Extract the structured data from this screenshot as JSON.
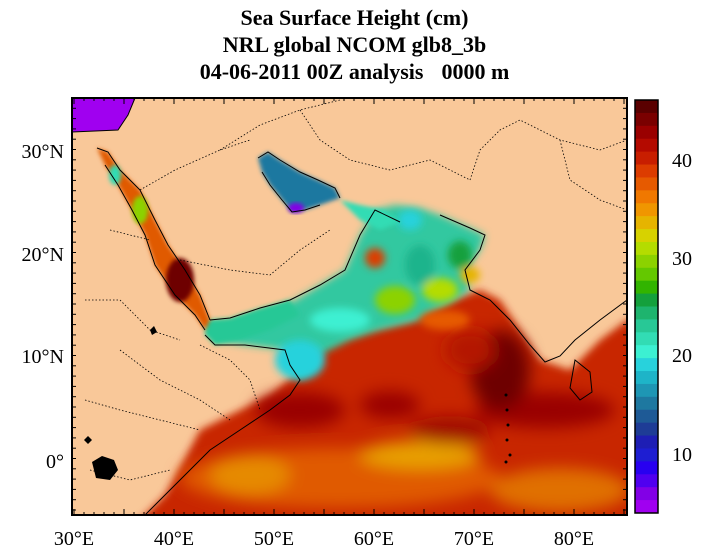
{
  "title": {
    "line1": "Sea Surface Height (cm)",
    "line2": "NRL global NCOM glb8_3b",
    "line3_date": "04-06-2011 00Z analysis",
    "line3_depth": "0000 m"
  },
  "map": {
    "lon_range": [
      30,
      86
    ],
    "lat_range": [
      -5,
      35
    ],
    "x_ticks": [
      "30°E",
      "40°E",
      "50°E",
      "60°E",
      "70°E",
      "80°E"
    ],
    "y_ticks": [
      "30°N",
      "20°N",
      "10°N",
      "0°"
    ],
    "land_color": "#f9c899"
  },
  "colorbar": {
    "range": [
      5,
      45
    ],
    "labels": [
      "40",
      "30",
      "20",
      "10"
    ],
    "colors": [
      "#5a0000",
      "#7a0000",
      "#9a0000",
      "#b40a00",
      "#c81e00",
      "#dc3c00",
      "#e65a00",
      "#f07800",
      "#f09600",
      "#e6b400",
      "#d7d200",
      "#b4dc00",
      "#8cd200",
      "#64c800",
      "#32b400",
      "#14a03c",
      "#1eb46e",
      "#28c896",
      "#32dcb4",
      "#3cf0d2",
      "#28d2dc",
      "#1eb4c8",
      "#1e96b4",
      "#1e78a0",
      "#1e5a96",
      "#1e3c96",
      "#1e1eb4",
      "#1e1ed2",
      "#2800f0",
      "#5000f0",
      "#8200e6",
      "#a000f0"
    ]
  }
}
